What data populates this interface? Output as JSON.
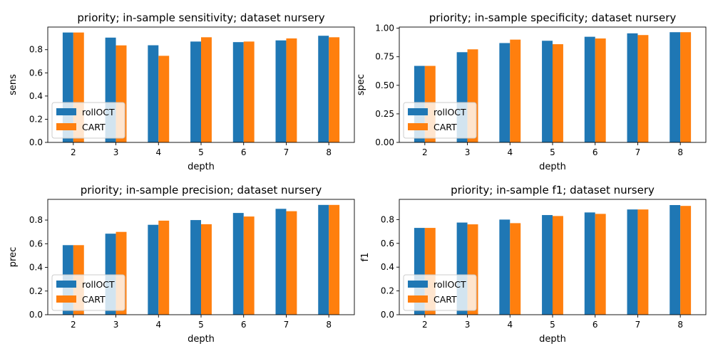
{
  "chart_data": [
    {
      "type": "bar",
      "title": "priority; in-sample sensitivity; dataset nursery",
      "xlabel": "depth",
      "ylabel": "sens",
      "categories": [
        "2",
        "3",
        "4",
        "5",
        "6",
        "7",
        "8"
      ],
      "ylim": [
        0,
        0.995
      ],
      "yticks": [
        "0.0",
        "0.2",
        "0.4",
        "0.6",
        "0.8"
      ],
      "ytick_values": [
        0,
        0.2,
        0.4,
        0.6,
        0.8
      ],
      "legend_position": "lower left",
      "series": [
        {
          "name": "rollOCT",
          "color": "#1f77b4",
          "values": [
            0.948,
            0.904,
            0.838,
            0.87,
            0.865,
            0.88,
            0.92
          ]
        },
        {
          "name": "CART",
          "color": "#ff7f0e",
          "values": [
            0.948,
            0.837,
            0.747,
            0.907,
            0.87,
            0.897,
            0.907
          ]
        }
      ]
    },
    {
      "type": "bar",
      "title": "priority; in-sample specificity; dataset nursery",
      "xlabel": "depth",
      "ylabel": "spec",
      "categories": [
        "2",
        "3",
        "4",
        "5",
        "6",
        "7",
        "8"
      ],
      "ylim": [
        0,
        1.01
      ],
      "yticks": [
        "0.00",
        "0.25",
        "0.50",
        "0.75",
        "1.00"
      ],
      "ytick_values": [
        0,
        0.25,
        0.5,
        0.75,
        1.0
      ],
      "legend_position": "lower left",
      "series": [
        {
          "name": "rollOCT",
          "color": "#1f77b4",
          "values": [
            0.67,
            0.79,
            0.87,
            0.89,
            0.925,
            0.955,
            0.965
          ]
        },
        {
          "name": "CART",
          "color": "#ff7f0e",
          "values": [
            0.67,
            0.815,
            0.9,
            0.86,
            0.91,
            0.94,
            0.965
          ]
        }
      ]
    },
    {
      "type": "bar",
      "title": "priority; in-sample precision; dataset nursery",
      "xlabel": "depth",
      "ylabel": "prec",
      "categories": [
        "2",
        "3",
        "4",
        "5",
        "6",
        "7",
        "8"
      ],
      "ylim": [
        0,
        0.975
      ],
      "yticks": [
        "0.0",
        "0.2",
        "0.4",
        "0.6",
        "0.8"
      ],
      "ytick_values": [
        0,
        0.2,
        0.4,
        0.6,
        0.8
      ],
      "legend_position": "lower left",
      "series": [
        {
          "name": "rollOCT",
          "color": "#1f77b4",
          "values": [
            0.588,
            0.685,
            0.76,
            0.8,
            0.86,
            0.895,
            0.928
          ]
        },
        {
          "name": "CART",
          "color": "#ff7f0e",
          "values": [
            0.588,
            0.7,
            0.795,
            0.765,
            0.83,
            0.875,
            0.928
          ]
        }
      ]
    },
    {
      "type": "bar",
      "title": "priority; in-sample f1; dataset nursery",
      "xlabel": "depth",
      "ylabel": "f1",
      "categories": [
        "2",
        "3",
        "4",
        "5",
        "6",
        "7",
        "8"
      ],
      "ylim": [
        0,
        0.97
      ],
      "yticks": [
        "0.0",
        "0.2",
        "0.4",
        "0.6",
        "0.8"
      ],
      "ytick_values": [
        0,
        0.2,
        0.4,
        0.6,
        0.8
      ],
      "legend_position": "lower left",
      "series": [
        {
          "name": "rollOCT",
          "color": "#1f77b4",
          "values": [
            0.73,
            0.775,
            0.8,
            0.838,
            0.86,
            0.885,
            0.922
          ]
        },
        {
          "name": "CART",
          "color": "#ff7f0e",
          "values": [
            0.73,
            0.76,
            0.77,
            0.83,
            0.848,
            0.885,
            0.915
          ]
        }
      ]
    }
  ]
}
